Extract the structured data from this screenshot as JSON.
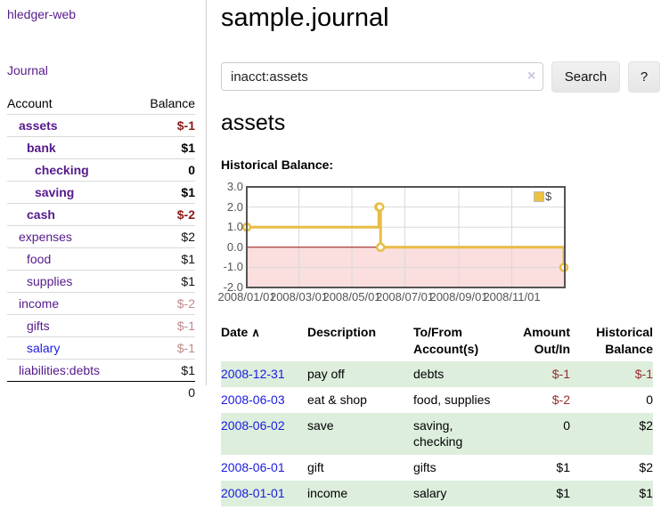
{
  "colors": {
    "link-purple": "#551a8b",
    "link-blue": "#1b1be0",
    "neg-strong": "#8b1a1a",
    "neg": "#952e2e",
    "neg-dim": "#c08a8a",
    "row-green": "#ddeedd",
    "legend-gold": "#edc240"
  },
  "app": {
    "brand": "hledger-web",
    "nav_journal": "Journal"
  },
  "sidebar": {
    "accounts_table": {
      "headers": {
        "account": "Account",
        "balance": "Balance"
      },
      "rows": [
        {
          "name": "assets",
          "indent": 1,
          "bold": true,
          "link_color": "purple",
          "balance": "$-1",
          "balance_style": "neg-strong"
        },
        {
          "name": "bank",
          "indent": 2,
          "bold": true,
          "link_color": "purple",
          "balance": "$1",
          "balance_style": "pos-strong"
        },
        {
          "name": "checking",
          "indent": 3,
          "bold": true,
          "link_color": "purple",
          "balance": "0",
          "balance_style": "pos-strong"
        },
        {
          "name": "saving",
          "indent": 3,
          "bold": true,
          "link_color": "purple",
          "balance": "$1",
          "balance_style": "pos-strong"
        },
        {
          "name": "cash",
          "indent": 2,
          "bold": true,
          "link_color": "purple",
          "balance": "$-2",
          "balance_style": "neg-strong"
        },
        {
          "name": "expenses",
          "indent": 1,
          "bold": false,
          "link_color": "purple",
          "balance": "$2",
          "balance_style": "pos"
        },
        {
          "name": "food",
          "indent": 2,
          "bold": false,
          "link_color": "purple",
          "balance": "$1",
          "balance_style": "pos"
        },
        {
          "name": "supplies",
          "indent": 2,
          "bold": false,
          "link_color": "purple",
          "balance": "$1",
          "balance_style": "pos"
        },
        {
          "name": "income",
          "indent": 1,
          "bold": false,
          "link_color": "purple",
          "balance": "$-2",
          "balance_style": "neg-dim"
        },
        {
          "name": "gifts",
          "indent": 2,
          "bold": false,
          "link_color": "purple",
          "balance": "$-1",
          "balance_style": "neg-dim"
        },
        {
          "name": "salary",
          "indent": 2,
          "bold": false,
          "link_color": "blue",
          "balance": "$-1",
          "balance_style": "neg-dim"
        },
        {
          "name": "liabilities:debts",
          "indent": 1,
          "bold": false,
          "link_color": "purple",
          "balance": "$1",
          "balance_style": "pos"
        }
      ],
      "total": "0"
    }
  },
  "header": {
    "title": "sample.journal"
  },
  "search": {
    "value": "inacct:assets",
    "clear_icon": "×",
    "button_label": "Search",
    "help_label": "?"
  },
  "account_page": {
    "heading": "assets",
    "chart_title": "Historical Balance:"
  },
  "chart_data": {
    "type": "line",
    "step": true,
    "title": "Historical Balance",
    "legend": [
      {
        "label": "$",
        "color": "#edc240"
      }
    ],
    "legend_position": "top-right",
    "grid": true,
    "ylim": [
      -2,
      3
    ],
    "y_ticks": [
      "3.0",
      "2.0",
      "1.0",
      "0.0",
      "-1.0",
      "-2.0"
    ],
    "x_range": {
      "min_day": 0,
      "max_day": 366
    },
    "x_ticks": [
      {
        "label": "2008/01/01",
        "day": 0
      },
      {
        "label": "2008/03/01",
        "day": 60
      },
      {
        "label": "2008/05/01",
        "day": 121
      },
      {
        "label": "2008/07/01",
        "day": 182
      },
      {
        "label": "2008/09/01",
        "day": 244
      },
      {
        "label": "2008/11/01",
        "day": 305
      }
    ],
    "series": [
      {
        "name": "$",
        "color": "#e8bc45",
        "points": [
          {
            "date": "2008-01-01",
            "day": 0,
            "value": 1
          },
          {
            "date": "2008-06-01",
            "day": 152,
            "value": 2
          },
          {
            "date": "2008-06-02",
            "day": 153,
            "value": 2
          },
          {
            "date": "2008-06-03",
            "day": 154,
            "value": 0
          },
          {
            "date": "2008-12-31",
            "day": 365,
            "value": -1
          }
        ]
      }
    ],
    "negative_region_color": "#fbdede",
    "zero_line_color": "#991111",
    "gridline_color": "#d9d9d9",
    "border_color": "#545454"
  },
  "transactions": {
    "sort_icon": "∧",
    "columns": [
      {
        "label": "Date",
        "label2": "",
        "align": "left"
      },
      {
        "label": "Description",
        "label2": "",
        "align": "left"
      },
      {
        "label": "To/From",
        "label2": "Account(s)",
        "align": "left"
      },
      {
        "label": "Amount",
        "label2": "Out/In",
        "align": "right"
      },
      {
        "label": "Historical",
        "label2": "Balance",
        "align": "right"
      }
    ],
    "rows": [
      {
        "date": "2008-12-31",
        "description": "pay off",
        "accounts": "debts",
        "amount": "$-1",
        "amount_neg": true,
        "balance": "$-1",
        "balance_neg": true
      },
      {
        "date": "2008-06-03",
        "description": "eat & shop",
        "accounts": "food, supplies",
        "amount": "$-2",
        "amount_neg": true,
        "balance": "0",
        "balance_neg": false
      },
      {
        "date": "2008-06-02",
        "description": "save",
        "accounts": "saving, checking",
        "amount": "0",
        "amount_neg": false,
        "balance": "$2",
        "balance_neg": false
      },
      {
        "date": "2008-06-01",
        "description": "gift",
        "accounts": "gifts",
        "amount": "$1",
        "amount_neg": false,
        "balance": "$2",
        "balance_neg": false
      },
      {
        "date": "2008-01-01",
        "description": "income",
        "accounts": "salary",
        "amount": "$1",
        "amount_neg": false,
        "balance": "$1",
        "balance_neg": false
      }
    ]
  }
}
